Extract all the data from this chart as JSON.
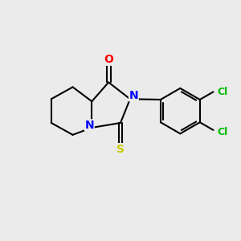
{
  "background_color": "#ebebeb",
  "bond_color": "#000000",
  "atom_colors": {
    "O": "#ff0000",
    "N": "#0000ff",
    "S": "#cccc00",
    "Cl": "#00bb00",
    "C": "#000000"
  },
  "lw": 1.5,
  "fontsize": 10
}
